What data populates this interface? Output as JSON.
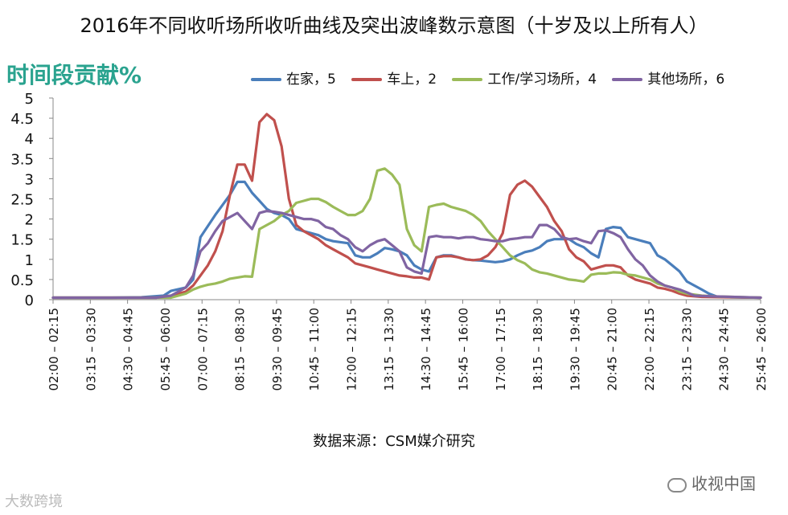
{
  "chart_data": {
    "type": "line",
    "title": "2016年不同收听场所收听曲线及突出波峰数示意图（十岁及以上所有人）",
    "ylabel": "时间段贡献%",
    "source": "数据来源：CSM媒介研究",
    "ylim": [
      0,
      5
    ],
    "yticks": [
      "0",
      "0.5",
      "1",
      "1.5",
      "2",
      "2.5",
      "3",
      "3.5",
      "4",
      "4.5",
      "5"
    ],
    "xlim": [
      0,
      96
    ],
    "x_tick_labels": [
      "02:00 – 02:15",
      "03:15 – 03:30",
      "04:30 – 04:45",
      "05:45 – 06:00",
      "07:00 – 07:15",
      "08:15 – 08:30",
      "09:30 – 09:45",
      "10:45 – 11:00",
      "12:00 – 12:15",
      "13:15 – 13:30",
      "14:30 – 14:45",
      "15:45 – 16:00",
      "17:00 – 17:15",
      "18:15 – 18:30",
      "19:30 – 19:45",
      "20:45 – 21:00",
      "22:00 – 22:15",
      "23:15 – 23:30",
      "24:30 – 24:45",
      "25:45 – 26:00"
    ],
    "grid": false,
    "legend_position": "top",
    "series": [
      {
        "name": "在家，5",
        "color": "#4a7ebb",
        "values": [
          [
            0,
            0.05
          ],
          [
            8,
            0.05
          ],
          [
            12,
            0.06
          ],
          [
            15,
            0.1
          ],
          [
            16,
            0.22
          ],
          [
            18,
            0.3
          ],
          [
            19,
            0.5
          ],
          [
            20,
            1.55
          ],
          [
            22,
            2.1
          ],
          [
            24,
            2.6
          ],
          [
            25,
            2.92
          ],
          [
            26,
            2.92
          ],
          [
            27,
            2.65
          ],
          [
            28,
            2.45
          ],
          [
            29,
            2.25
          ],
          [
            30,
            2.15
          ],
          [
            31,
            2.1
          ],
          [
            32,
            2.0
          ],
          [
            33,
            1.75
          ],
          [
            34,
            1.7
          ],
          [
            35,
            1.65
          ],
          [
            36,
            1.6
          ],
          [
            37,
            1.5
          ],
          [
            38,
            1.45
          ],
          [
            40,
            1.4
          ],
          [
            41,
            1.1
          ],
          [
            42,
            1.05
          ],
          [
            43,
            1.05
          ],
          [
            44,
            1.15
          ],
          [
            45,
            1.28
          ],
          [
            46,
            1.25
          ],
          [
            47,
            1.2
          ],
          [
            48,
            1.1
          ],
          [
            49,
            0.85
          ],
          [
            50,
            0.75
          ],
          [
            51,
            0.7
          ],
          [
            52,
            1.05
          ],
          [
            53,
            1.1
          ],
          [
            54,
            1.1
          ],
          [
            55,
            1.05
          ],
          [
            56,
            1.0
          ],
          [
            57,
            0.98
          ],
          [
            58,
            0.97
          ],
          [
            59,
            0.95
          ],
          [
            60,
            0.93
          ],
          [
            61,
            0.95
          ],
          [
            62,
            1.0
          ],
          [
            63,
            1.1
          ],
          [
            64,
            1.18
          ],
          [
            65,
            1.22
          ],
          [
            66,
            1.3
          ],
          [
            67,
            1.45
          ],
          [
            68,
            1.5
          ],
          [
            69,
            1.5
          ],
          [
            70,
            1.5
          ],
          [
            71,
            1.38
          ],
          [
            72,
            1.3
          ],
          [
            73,
            1.15
          ],
          [
            74,
            1.05
          ],
          [
            75,
            1.75
          ],
          [
            76,
            1.8
          ],
          [
            77,
            1.78
          ],
          [
            78,
            1.55
          ],
          [
            79,
            1.5
          ],
          [
            80,
            1.45
          ],
          [
            81,
            1.4
          ],
          [
            82,
            1.1
          ],
          [
            83,
            1.0
          ],
          [
            84,
            0.85
          ],
          [
            85,
            0.7
          ],
          [
            86,
            0.45
          ],
          [
            87,
            0.35
          ],
          [
            88,
            0.25
          ],
          [
            89,
            0.15
          ],
          [
            90,
            0.08
          ],
          [
            92,
            0.06
          ],
          [
            96,
            0.05
          ]
        ]
      },
      {
        "name": "车上，2",
        "color": "#c0504d",
        "values": [
          [
            0,
            0.05
          ],
          [
            14,
            0.05
          ],
          [
            16,
            0.1
          ],
          [
            18,
            0.2
          ],
          [
            19,
            0.35
          ],
          [
            20,
            0.6
          ],
          [
            21,
            0.85
          ],
          [
            22,
            1.2
          ],
          [
            23,
            1.7
          ],
          [
            24,
            2.6
          ],
          [
            25,
            3.35
          ],
          [
            26,
            3.35
          ],
          [
            27,
            2.95
          ],
          [
            28,
            4.4
          ],
          [
            29,
            4.6
          ],
          [
            30,
            4.45
          ],
          [
            31,
            3.8
          ],
          [
            32,
            2.5
          ],
          [
            33,
            1.85
          ],
          [
            34,
            1.7
          ],
          [
            35,
            1.6
          ],
          [
            36,
            1.5
          ],
          [
            37,
            1.35
          ],
          [
            38,
            1.25
          ],
          [
            39,
            1.15
          ],
          [
            40,
            1.05
          ],
          [
            41,
            0.9
          ],
          [
            42,
            0.85
          ],
          [
            43,
            0.8
          ],
          [
            44,
            0.75
          ],
          [
            45,
            0.7
          ],
          [
            46,
            0.65
          ],
          [
            47,
            0.6
          ],
          [
            48,
            0.58
          ],
          [
            49,
            0.55
          ],
          [
            50,
            0.55
          ],
          [
            51,
            0.5
          ],
          [
            52,
            1.05
          ],
          [
            53,
            1.08
          ],
          [
            54,
            1.08
          ],
          [
            55,
            1.05
          ],
          [
            56,
            1.0
          ],
          [
            57,
            0.98
          ],
          [
            58,
            1.0
          ],
          [
            59,
            1.1
          ],
          [
            60,
            1.3
          ],
          [
            61,
            1.65
          ],
          [
            62,
            2.6
          ],
          [
            63,
            2.85
          ],
          [
            64,
            2.95
          ],
          [
            65,
            2.8
          ],
          [
            66,
            2.55
          ],
          [
            67,
            2.3
          ],
          [
            68,
            1.95
          ],
          [
            69,
            1.7
          ],
          [
            70,
            1.25
          ],
          [
            71,
            1.05
          ],
          [
            72,
            0.95
          ],
          [
            73,
            0.75
          ],
          [
            74,
            0.8
          ],
          [
            75,
            0.85
          ],
          [
            76,
            0.85
          ],
          [
            77,
            0.8
          ],
          [
            78,
            0.6
          ],
          [
            79,
            0.5
          ],
          [
            80,
            0.45
          ],
          [
            81,
            0.4
          ],
          [
            82,
            0.3
          ],
          [
            83,
            0.27
          ],
          [
            84,
            0.22
          ],
          [
            85,
            0.15
          ],
          [
            86,
            0.1
          ],
          [
            88,
            0.07
          ],
          [
            96,
            0.05
          ]
        ]
      },
      {
        "name": "工作/学习场所，4",
        "color": "#9bbb59",
        "values": [
          [
            0,
            0.05
          ],
          [
            16,
            0.05
          ],
          [
            18,
            0.15
          ],
          [
            19,
            0.25
          ],
          [
            20,
            0.32
          ],
          [
            21,
            0.37
          ],
          [
            22,
            0.4
          ],
          [
            23,
            0.45
          ],
          [
            24,
            0.52
          ],
          [
            25,
            0.55
          ],
          [
            26,
            0.58
          ],
          [
            27,
            0.57
          ],
          [
            28,
            1.75
          ],
          [
            29,
            1.85
          ],
          [
            30,
            1.95
          ],
          [
            31,
            2.1
          ],
          [
            32,
            2.2
          ],
          [
            33,
            2.4
          ],
          [
            34,
            2.45
          ],
          [
            35,
            2.5
          ],
          [
            36,
            2.5
          ],
          [
            37,
            2.42
          ],
          [
            38,
            2.3
          ],
          [
            39,
            2.2
          ],
          [
            40,
            2.1
          ],
          [
            41,
            2.1
          ],
          [
            42,
            2.2
          ],
          [
            43,
            2.5
          ],
          [
            44,
            3.2
          ],
          [
            45,
            3.25
          ],
          [
            46,
            3.1
          ],
          [
            47,
            2.85
          ],
          [
            48,
            1.75
          ],
          [
            49,
            1.35
          ],
          [
            50,
            1.2
          ],
          [
            51,
            2.3
          ],
          [
            52,
            2.35
          ],
          [
            53,
            2.38
          ],
          [
            54,
            2.3
          ],
          [
            55,
            2.25
          ],
          [
            56,
            2.2
          ],
          [
            57,
            2.1
          ],
          [
            58,
            1.95
          ],
          [
            59,
            1.7
          ],
          [
            60,
            1.5
          ],
          [
            61,
            1.3
          ],
          [
            62,
            1.1
          ],
          [
            63,
            0.98
          ],
          [
            64,
            0.9
          ],
          [
            65,
            0.75
          ],
          [
            66,
            0.68
          ],
          [
            67,
            0.65
          ],
          [
            68,
            0.6
          ],
          [
            69,
            0.55
          ],
          [
            70,
            0.5
          ],
          [
            71,
            0.48
          ],
          [
            72,
            0.45
          ],
          [
            73,
            0.62
          ],
          [
            74,
            0.65
          ],
          [
            75,
            0.65
          ],
          [
            76,
            0.68
          ],
          [
            77,
            0.67
          ],
          [
            78,
            0.62
          ],
          [
            79,
            0.6
          ],
          [
            80,
            0.55
          ],
          [
            81,
            0.5
          ],
          [
            82,
            0.4
          ],
          [
            83,
            0.35
          ],
          [
            84,
            0.3
          ],
          [
            85,
            0.2
          ],
          [
            86,
            0.15
          ],
          [
            88,
            0.1
          ],
          [
            90,
            0.08
          ],
          [
            96,
            0.05
          ]
        ]
      },
      {
        "name": "其他场所，6",
        "color": "#8064a2",
        "values": [
          [
            0,
            0.05
          ],
          [
            14,
            0.05
          ],
          [
            16,
            0.1
          ],
          [
            18,
            0.3
          ],
          [
            19,
            0.6
          ],
          [
            20,
            1.2
          ],
          [
            21,
            1.4
          ],
          [
            22,
            1.7
          ],
          [
            23,
            1.95
          ],
          [
            24,
            2.05
          ],
          [
            25,
            2.15
          ],
          [
            26,
            1.95
          ],
          [
            27,
            1.75
          ],
          [
            28,
            2.15
          ],
          [
            29,
            2.2
          ],
          [
            30,
            2.18
          ],
          [
            31,
            2.15
          ],
          [
            32,
            2.1
          ],
          [
            33,
            2.05
          ],
          [
            34,
            2.0
          ],
          [
            35,
            2.0
          ],
          [
            36,
            1.95
          ],
          [
            37,
            1.8
          ],
          [
            38,
            1.75
          ],
          [
            39,
            1.6
          ],
          [
            40,
            1.5
          ],
          [
            41,
            1.3
          ],
          [
            42,
            1.2
          ],
          [
            43,
            1.35
          ],
          [
            44,
            1.45
          ],
          [
            45,
            1.5
          ],
          [
            46,
            1.35
          ],
          [
            47,
            1.2
          ],
          [
            48,
            0.8
          ],
          [
            49,
            0.7
          ],
          [
            50,
            0.65
          ],
          [
            51,
            1.55
          ],
          [
            52,
            1.58
          ],
          [
            53,
            1.55
          ],
          [
            54,
            1.55
          ],
          [
            55,
            1.52
          ],
          [
            56,
            1.55
          ],
          [
            57,
            1.55
          ],
          [
            58,
            1.5
          ],
          [
            59,
            1.48
          ],
          [
            60,
            1.45
          ],
          [
            61,
            1.45
          ],
          [
            62,
            1.5
          ],
          [
            63,
            1.52
          ],
          [
            64,
            1.55
          ],
          [
            65,
            1.55
          ],
          [
            66,
            1.85
          ],
          [
            67,
            1.85
          ],
          [
            68,
            1.75
          ],
          [
            69,
            1.55
          ],
          [
            70,
            1.5
          ],
          [
            71,
            1.52
          ],
          [
            72,
            1.45
          ],
          [
            73,
            1.4
          ],
          [
            74,
            1.7
          ],
          [
            75,
            1.72
          ],
          [
            76,
            1.65
          ],
          [
            77,
            1.55
          ],
          [
            78,
            1.25
          ],
          [
            79,
            1.0
          ],
          [
            80,
            0.85
          ],
          [
            81,
            0.6
          ],
          [
            82,
            0.45
          ],
          [
            83,
            0.35
          ],
          [
            84,
            0.3
          ],
          [
            85,
            0.25
          ],
          [
            86,
            0.18
          ],
          [
            87,
            0.1
          ],
          [
            90,
            0.08
          ],
          [
            96,
            0.05
          ]
        ]
      }
    ]
  },
  "watermarks": {
    "left": "大数跨境",
    "right": "收视中国"
  }
}
